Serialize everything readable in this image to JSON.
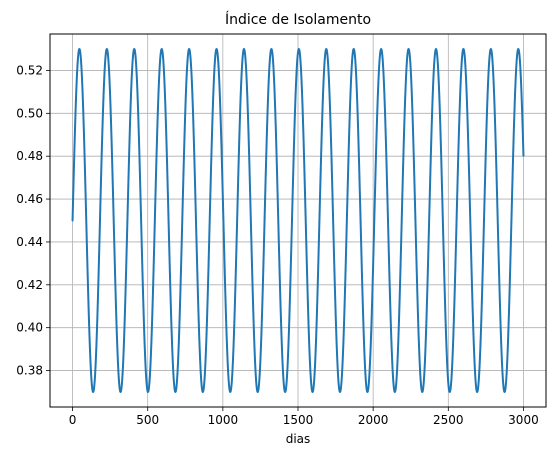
{
  "chart_data": {
    "type": "line",
    "title": "Índice de Isolamento",
    "xlabel": "dias",
    "ylabel": "",
    "xlim": [
      -150,
      3150
    ],
    "ylim": [
      0.363,
      0.537
    ],
    "grid": true,
    "x_ticks": [
      0,
      500,
      1000,
      1500,
      2000,
      2500,
      3000
    ],
    "x_tick_labels": [
      "0",
      "500",
      "1000",
      "1500",
      "2000",
      "2500",
      "3000"
    ],
    "y_ticks": [
      0.38,
      0.4,
      0.42,
      0.44,
      0.46,
      0.48,
      0.5,
      0.52
    ],
    "y_tick_labels": [
      "0.38",
      "0.40",
      "0.42",
      "0.44",
      "0.46",
      "0.48",
      "0.50",
      "0.52"
    ],
    "series": [
      {
        "color": "#1f77b4",
        "function": "sinusoid",
        "mean": 0.45,
        "amplitude": 0.08,
        "period_days": 182.5,
        "x_start": 0,
        "x_end": 3000,
        "y_at_start": 0.45
      }
    ]
  }
}
